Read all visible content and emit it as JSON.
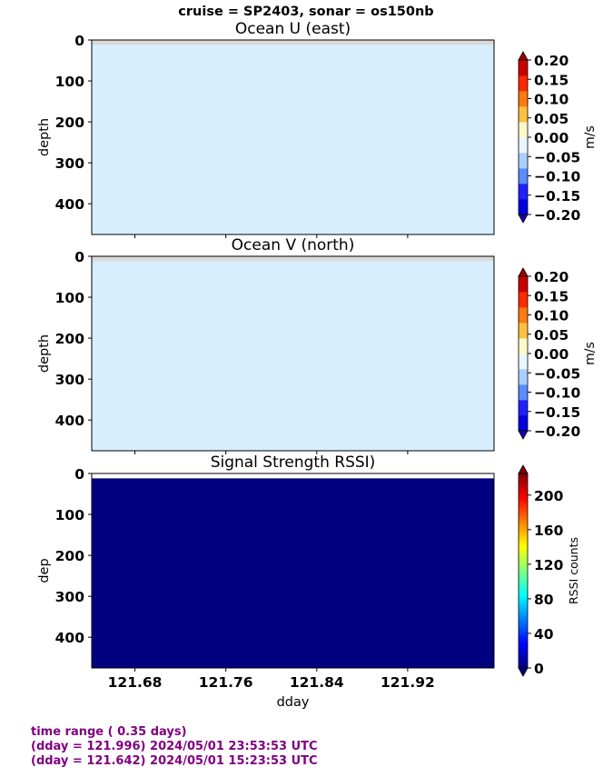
{
  "suptitle": "cruise = SP2403,  sonar = os150nb",
  "chart_data": [
    {
      "type": "heatmap",
      "title": "Ocean U (east)",
      "ylabel": "depth",
      "xlabel": "",
      "ylim": [
        475,
        0
      ],
      "yticks": [
        0,
        100,
        200,
        300,
        400
      ],
      "xlim": [
        121.642,
        121.996
      ],
      "xticks": [
        121.68,
        121.76,
        121.84,
        121.92
      ],
      "show_xticklabels": false,
      "fill_value": -0.02,
      "fill_color": "#d6eeff",
      "nodata_band": [
        0,
        12
      ],
      "nodata_color": "#d9d9d9",
      "colorbar": {
        "label": "m/s",
        "vmin": -0.2,
        "vmax": 0.2,
        "ticks": [
          "0.20",
          "0.15",
          "0.10",
          "0.05",
          "0.00",
          "−0.05",
          "−0.10",
          "−0.15",
          "−0.20"
        ],
        "colors": [
          "#0000e0",
          "#2020ff",
          "#5a8cff",
          "#a8cfff",
          "#e8f6ff",
          "#fff8c8",
          "#ffc040",
          "#ff7a10",
          "#ff2a00",
          "#c80000"
        ],
        "extend": "both",
        "under_color": "#1e00a8",
        "over_color": "#a00000"
      }
    },
    {
      "type": "heatmap",
      "title": "Ocean V (north)",
      "ylabel": "depth",
      "xlabel": "",
      "ylim": [
        475,
        0
      ],
      "yticks": [
        0,
        100,
        200,
        300,
        400
      ],
      "xlim": [
        121.642,
        121.996
      ],
      "xticks": [
        121.68,
        121.76,
        121.84,
        121.92
      ],
      "show_xticklabels": false,
      "fill_value": -0.02,
      "fill_color": "#d6eeff",
      "nodata_band": [
        0,
        12
      ],
      "nodata_color": "#d9d9d9",
      "colorbar": {
        "label": "m/s",
        "vmin": -0.2,
        "vmax": 0.2,
        "ticks": [
          "0.20",
          "0.15",
          "0.10",
          "0.05",
          "0.00",
          "−0.05",
          "−0.10",
          "−0.15",
          "−0.20"
        ],
        "colors": [
          "#0000e0",
          "#2020ff",
          "#5a8cff",
          "#a8cfff",
          "#e8f6ff",
          "#fff8c8",
          "#ffc040",
          "#ff7a10",
          "#ff2a00",
          "#c80000"
        ],
        "extend": "both",
        "under_color": "#1e00a8",
        "over_color": "#a00000"
      }
    },
    {
      "type": "heatmap",
      "title": "Signal Strength RSSI)",
      "ylabel": "dep",
      "xlabel": "dday",
      "ylim": [
        475,
        0
      ],
      "yticks": [
        0,
        100,
        200,
        300,
        400
      ],
      "xlim": [
        121.642,
        121.996
      ],
      "xticks": [
        121.68,
        121.76,
        121.84,
        121.92
      ],
      "xtick_labels": [
        "121.68",
        "121.76",
        "121.84",
        "121.92"
      ],
      "show_xticklabels": true,
      "fill_value": 0,
      "fill_color": "#000080",
      "nodata_band": [
        0,
        12
      ],
      "nodata_color": "#ffffff",
      "colorbar": {
        "label": "RSSI counts",
        "vmin": 0,
        "vmax": 225,
        "ticks": [
          "200",
          "160",
          "120",
          "80",
          "40",
          "0"
        ],
        "tick_values": [
          200,
          160,
          120,
          80,
          40,
          0
        ],
        "gradient": true,
        "colors": [
          "#000080",
          "#0000ff",
          "#0080ff",
          "#00ffff",
          "#80ff80",
          "#ffff00",
          "#ff8000",
          "#ff0000",
          "#800000"
        ],
        "extend": "both",
        "under_color": "#000080",
        "over_color": "#800000"
      }
    }
  ],
  "footer": {
    "line1": "time range ( 0.35 days)",
    "line2": "(dday = 121.996) 2024/05/01 23:53:53 UTC",
    "line3": "(dday = 121.642) 2024/05/01 15:23:53 UTC"
  }
}
